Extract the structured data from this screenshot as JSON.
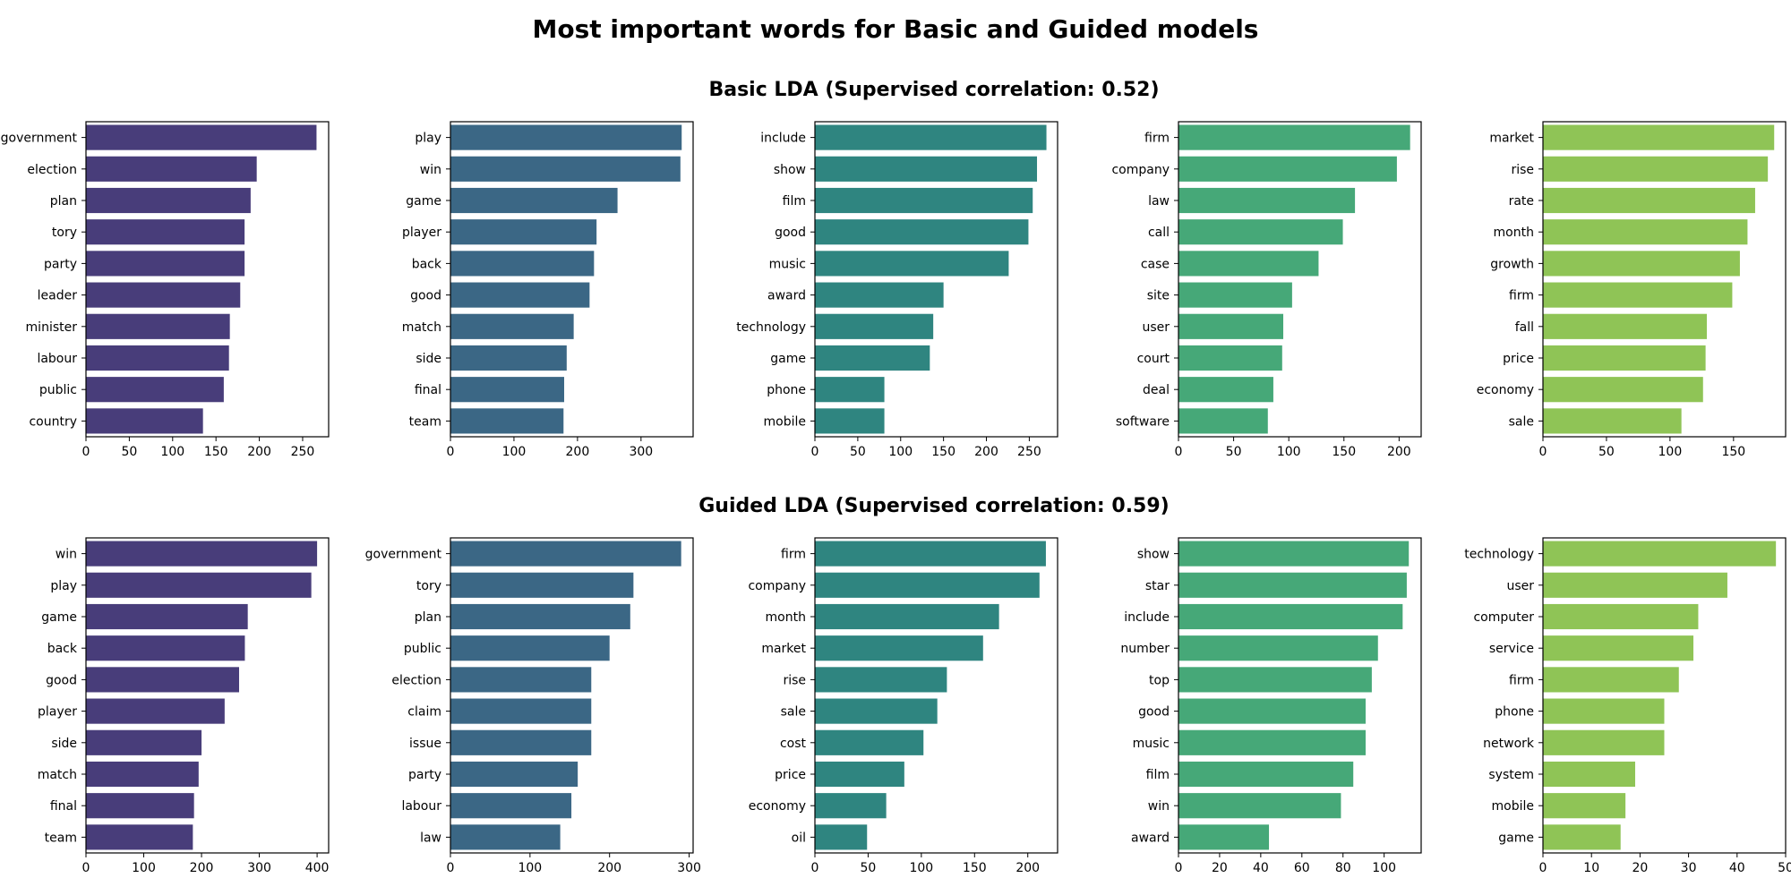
{
  "title": "Most important words for Basic and Guided models",
  "palette": [
    "#483d7a",
    "#3b6785",
    "#2f8580",
    "#46a878",
    "#8fc456"
  ],
  "chart_data": [
    {
      "row_title": "Basic LDA (Supervised correlation: 0.52)",
      "panels": [
        {
          "type": "bar",
          "orientation": "horizontal",
          "categories": [
            "government",
            "election",
            "plan",
            "tory",
            "party",
            "leader",
            "minister",
            "labour",
            "public",
            "country"
          ],
          "values": [
            266,
            197,
            190,
            183,
            183,
            178,
            166,
            165,
            159,
            135
          ],
          "xlim": [
            0,
            280
          ],
          "xticks": [
            0,
            50,
            100,
            150,
            200,
            250
          ],
          "color": "#483d7a"
        },
        {
          "type": "bar",
          "orientation": "horizontal",
          "categories": [
            "play",
            "win",
            "game",
            "player",
            "back",
            "good",
            "match",
            "side",
            "final",
            "team"
          ],
          "values": [
            364,
            362,
            263,
            230,
            226,
            219,
            194,
            183,
            179,
            178
          ],
          "xlim": [
            0,
            382
          ],
          "xticks": [
            0,
            100,
            200,
            300
          ],
          "color": "#3b6785"
        },
        {
          "type": "bar",
          "orientation": "horizontal",
          "categories": [
            "include",
            "show",
            "film",
            "good",
            "music",
            "award",
            "technology",
            "game",
            "phone",
            "mobile"
          ],
          "values": [
            270,
            259,
            254,
            249,
            226,
            150,
            138,
            134,
            81,
            81
          ],
          "xlim": [
            0,
            283
          ],
          "xticks": [
            0,
            50,
            100,
            150,
            200,
            250
          ],
          "color": "#2f8580"
        },
        {
          "type": "bar",
          "orientation": "horizontal",
          "categories": [
            "firm",
            "company",
            "law",
            "call",
            "case",
            "site",
            "user",
            "court",
            "deal",
            "software"
          ],
          "values": [
            210,
            198,
            160,
            149,
            127,
            103,
            95,
            94,
            86,
            81
          ],
          "xlim": [
            0,
            220
          ],
          "xticks": [
            0,
            50,
            100,
            150,
            200
          ],
          "color": "#46a878"
        },
        {
          "type": "bar",
          "orientation": "horizontal",
          "categories": [
            "market",
            "rise",
            "rate",
            "month",
            "growth",
            "firm",
            "fall",
            "price",
            "economy",
            "sale"
          ],
          "values": [
            182,
            177,
            167,
            161,
            155,
            149,
            129,
            128,
            126,
            109
          ],
          "xlim": [
            0,
            191
          ],
          "xticks": [
            0,
            50,
            100,
            150
          ],
          "color": "#8fc456"
        }
      ]
    },
    {
      "row_title": "Guided LDA (Supervised correlation: 0.59)",
      "panels": [
        {
          "type": "bar",
          "orientation": "horizontal",
          "categories": [
            "win",
            "play",
            "game",
            "back",
            "good",
            "player",
            "side",
            "match",
            "final",
            "team"
          ],
          "values": [
            400,
            390,
            280,
            275,
            265,
            240,
            200,
            195,
            187,
            185
          ],
          "xlim": [
            0,
            420
          ],
          "xticks": [
            0,
            100,
            200,
            300,
            400
          ],
          "color": "#483d7a"
        },
        {
          "type": "bar",
          "orientation": "horizontal",
          "categories": [
            "government",
            "tory",
            "plan",
            "public",
            "election",
            "claim",
            "issue",
            "party",
            "labour",
            "law"
          ],
          "values": [
            290,
            230,
            226,
            200,
            177,
            177,
            177,
            160,
            152,
            138
          ],
          "xlim": [
            0,
            305
          ],
          "xticks": [
            0,
            100,
            200,
            300
          ],
          "color": "#3b6785"
        },
        {
          "type": "bar",
          "orientation": "horizontal",
          "categories": [
            "firm",
            "company",
            "month",
            "market",
            "rise",
            "sale",
            "cost",
            "price",
            "economy",
            "oil"
          ],
          "values": [
            217,
            211,
            173,
            158,
            124,
            115,
            102,
            84,
            67,
            49
          ],
          "xlim": [
            0,
            228
          ],
          "xticks": [
            0,
            50,
            100,
            150,
            200
          ],
          "color": "#2f8580"
        },
        {
          "type": "bar",
          "orientation": "horizontal",
          "categories": [
            "show",
            "star",
            "include",
            "number",
            "top",
            "good",
            "music",
            "film",
            "win",
            "award"
          ],
          "values": [
            112,
            111,
            109,
            97,
            94,
            91,
            91,
            85,
            79,
            44
          ],
          "xlim": [
            0,
            118
          ],
          "xticks": [
            0,
            20,
            40,
            60,
            80,
            100
          ],
          "color": "#46a878"
        },
        {
          "type": "bar",
          "orientation": "horizontal",
          "categories": [
            "technology",
            "user",
            "computer",
            "service",
            "firm",
            "phone",
            "network",
            "system",
            "mobile",
            "game"
          ],
          "values": [
            48,
            38,
            32,
            31,
            28,
            25,
            25,
            19,
            17,
            16
          ],
          "xlim": [
            0,
            50
          ],
          "xticks": [
            0,
            10,
            20,
            30,
            40,
            50
          ],
          "color": "#8fc456"
        }
      ]
    }
  ]
}
